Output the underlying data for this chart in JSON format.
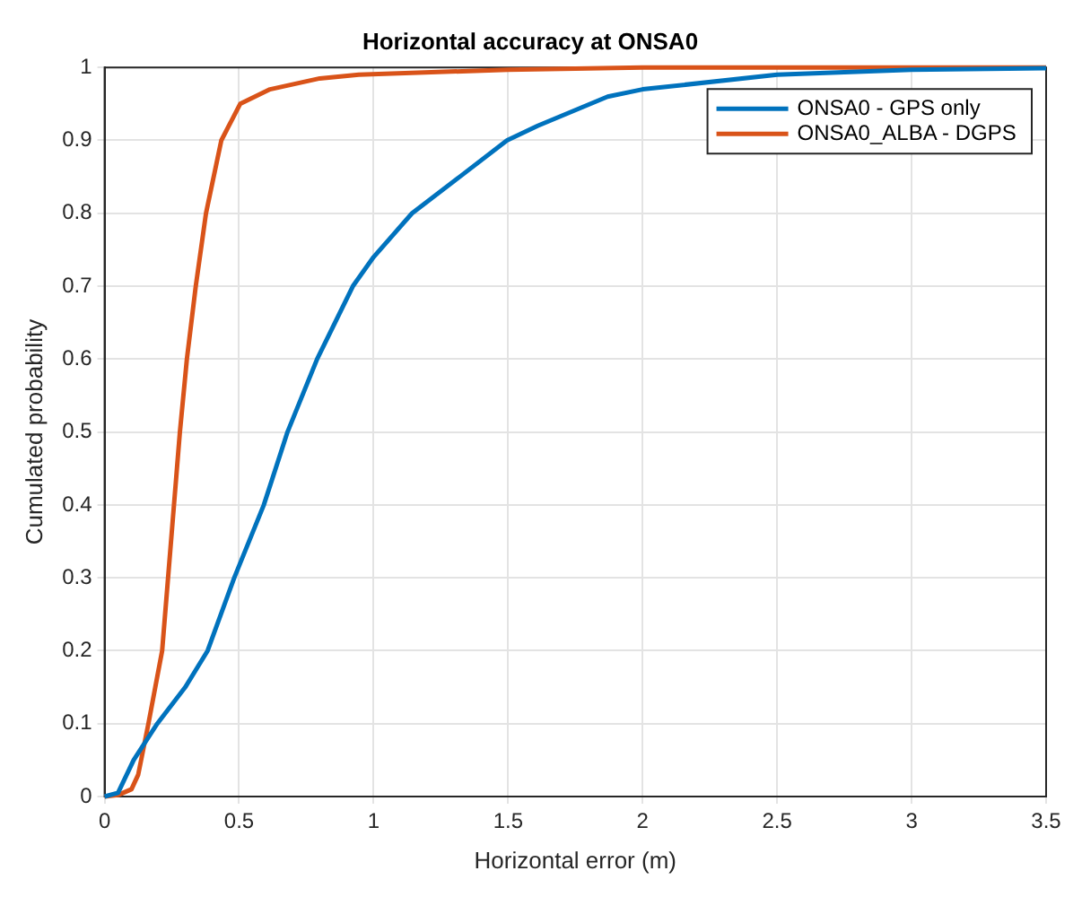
{
  "chart_data": {
    "type": "line",
    "title": "Horizontal accuracy at ONSA0",
    "xlabel": "Horizontal error (m)",
    "ylabel": "Cumulated probability",
    "series": [
      {
        "name": "ONSA0 - GPS only",
        "color": "#0072bd",
        "x": [
          0,
          0.05,
          0.108,
          0.196,
          0.3,
          0.383,
          0.482,
          0.592,
          0.68,
          0.79,
          0.923,
          1.0,
          1.143,
          1.32,
          1.496,
          1.61,
          1.74,
          1.87,
          2.0,
          2.5,
          3.0,
          3.5
        ],
        "values": [
          0,
          0.005,
          0.05,
          0.1,
          0.15,
          0.2,
          0.3,
          0.4,
          0.5,
          0.6,
          0.7,
          0.74,
          0.8,
          0.85,
          0.9,
          0.92,
          0.94,
          0.96,
          0.97,
          0.99,
          0.997,
          0.999
        ]
      },
      {
        "name": "ONSA0_ALBA - DGPS",
        "color": "#d95319",
        "x": [
          0,
          0.05,
          0.1,
          0.125,
          0.163,
          0.214,
          0.258,
          0.28,
          0.306,
          0.339,
          0.377,
          0.434,
          0.504,
          0.615,
          0.8,
          0.945,
          1.5,
          2.0,
          3.5
        ],
        "values": [
          0,
          0.002,
          0.01,
          0.03,
          0.1,
          0.2,
          0.4,
          0.5,
          0.6,
          0.7,
          0.8,
          0.9,
          0.95,
          0.97,
          0.985,
          0.99,
          0.997,
          1,
          1
        ]
      }
    ],
    "xlim": [
      0,
      3.5
    ],
    "xticks": [
      0,
      0.5,
      1,
      1.5,
      2,
      2.5,
      3,
      3.5
    ],
    "ylim": [
      0,
      1
    ],
    "yticks": [
      0,
      0.1,
      0.2,
      0.3,
      0.4,
      0.5,
      0.6,
      0.7,
      0.8,
      0.9,
      1
    ],
    "grid": true,
    "legend": "top right",
    "marker": "none",
    "line_style": "solid"
  }
}
